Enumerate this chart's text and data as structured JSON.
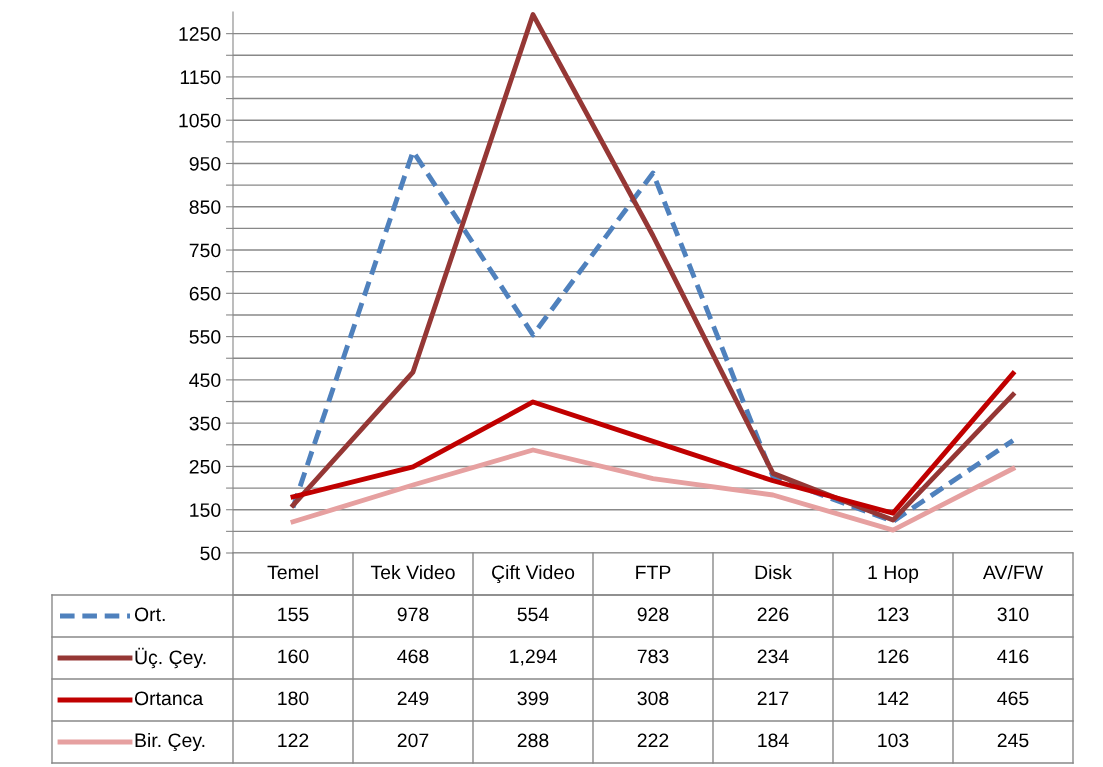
{
  "chart_data": {
    "type": "line",
    "categories": [
      "Temel",
      "Tek Video",
      "Çift Video",
      "FTP",
      "Disk",
      "1 Hop",
      "AV/FW"
    ],
    "series": [
      {
        "name": "Ort.",
        "color": "#4f81bd",
        "line_style": "dashed",
        "values": [
          155,
          978,
          554,
          928,
          226,
          123,
          310
        ],
        "value_labels": [
          "155",
          "978",
          "554",
          "928",
          "226",
          "123",
          "310"
        ]
      },
      {
        "name": "Üç. Çey.",
        "color": "#953735",
        "line_style": "solid",
        "values": [
          160,
          468,
          1294,
          783,
          234,
          126,
          416
        ],
        "value_labels": [
          "160",
          "468",
          "1,294",
          "783",
          "234",
          "126",
          "416"
        ]
      },
      {
        "name": "Ortanca",
        "color": "#c00000",
        "line_style": "solid",
        "values": [
          180,
          249,
          399,
          308,
          217,
          142,
          465
        ],
        "value_labels": [
          "180",
          "249",
          "399",
          "308",
          "217",
          "142",
          "465"
        ]
      },
      {
        "name": "Bir. Çey.",
        "color": "#e6a0a0",
        "line_style": "solid",
        "values": [
          122,
          207,
          288,
          222,
          184,
          103,
          245
        ],
        "value_labels": [
          "122",
          "207",
          "288",
          "222",
          "184",
          "103",
          "245"
        ]
      }
    ],
    "ylim": [
      50,
      1300
    ],
    "yticks": [
      50,
      {
        "value": 100,
        "label": null
      },
      150,
      {
        "value": 200,
        "label": null
      },
      250,
      {
        "value": 300,
        "label": null
      },
      350,
      {
        "value": 400,
        "label": null
      },
      450,
      {
        "value": 500,
        "label": null
      },
      550,
      {
        "value": 600,
        "label": null
      },
      650,
      {
        "value": 700,
        "label": null
      },
      750,
      {
        "value": 800,
        "label": null
      },
      850,
      {
        "value": 900,
        "label": null
      },
      950,
      {
        "value": 1000,
        "label": null
      },
      1050,
      {
        "value": 1100,
        "label": null
      },
      1150,
      {
        "value": 1200,
        "label": null
      },
      1250
    ],
    "grid": "y",
    "legend": "bottom",
    "marker": "none"
  }
}
